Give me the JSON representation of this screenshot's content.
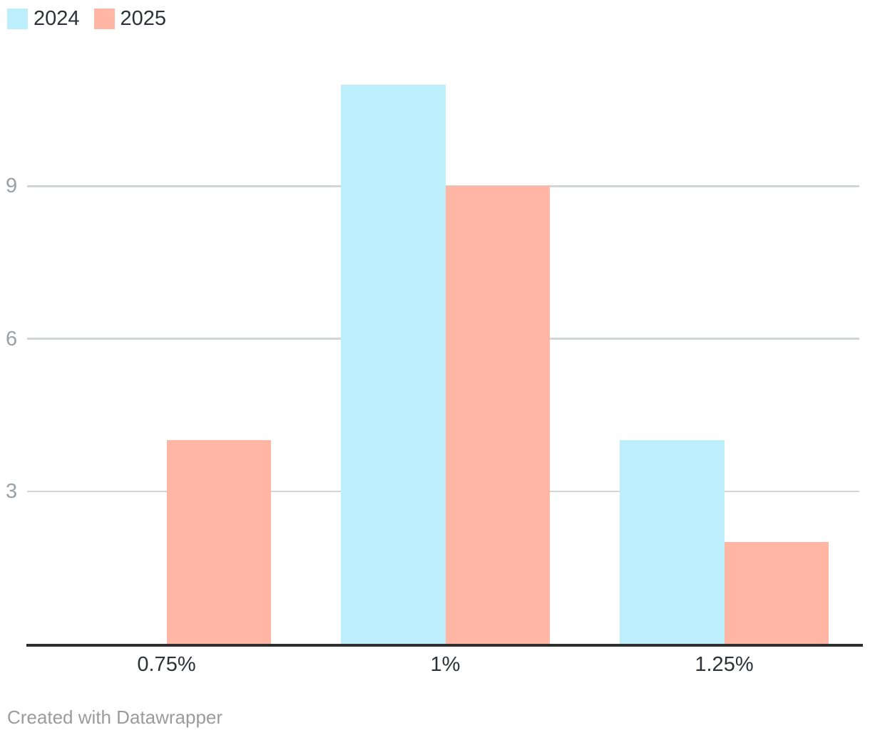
{
  "footer": {
    "text": "Created with Datawrapper"
  },
  "chart_data": {
    "type": "bar",
    "grouped": true,
    "title": "",
    "xlabel": "",
    "ylabel": "",
    "categories": [
      "0.75%",
      "1%",
      "1.25%"
    ],
    "series": [
      {
        "name": "2024",
        "color": "#bdeefb",
        "values": [
          0,
          11,
          4
        ]
      },
      {
        "name": "2025",
        "color": "#ffb6a5",
        "values": [
          4,
          9,
          2
        ]
      }
    ],
    "y_ticks": [
      3,
      6,
      9
    ],
    "ylim": [
      0,
      11.8
    ],
    "grid": "horizontal",
    "legend_position": "top-left",
    "colors": {
      "grid": "#d2d6d9",
      "axis": "#2e2e2e",
      "tick_label": "#9aa0a5",
      "category_label": "#2c3237",
      "footer": "#9b9b9b",
      "background": "#ffffff"
    }
  }
}
